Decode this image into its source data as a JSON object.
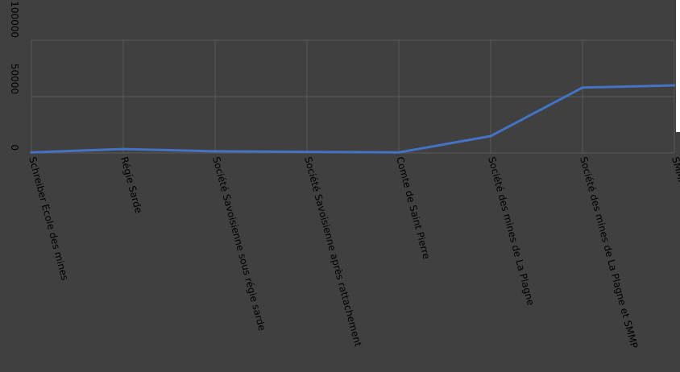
{
  "chart_data": {
    "type": "line",
    "title": "",
    "xlabel": "",
    "ylabel": "",
    "categories": [
      "Schreiber Ecole des mines",
      "Régie Sarde",
      "Société Savoisienne sous régie sarde",
      "Société Savoisienne après rattachement",
      "Comte de Saint Pierre",
      "Société des mines de La Plagne",
      "Société des mines de La Plagne et SMMP",
      "SMMP"
    ],
    "series": [
      {
        "values": [
          500,
          3500,
          1500,
          1000,
          500,
          15000,
          58000,
          60000
        ]
      }
    ],
    "ylim": [
      0,
      100000
    ],
    "yticks": [
      "0",
      "50000",
      "100000"
    ],
    "grid": true,
    "legend": "none",
    "colors": {
      "line": "#4472c4",
      "grid": "#595959",
      "background": "#404040",
      "text": "#000000"
    }
  }
}
